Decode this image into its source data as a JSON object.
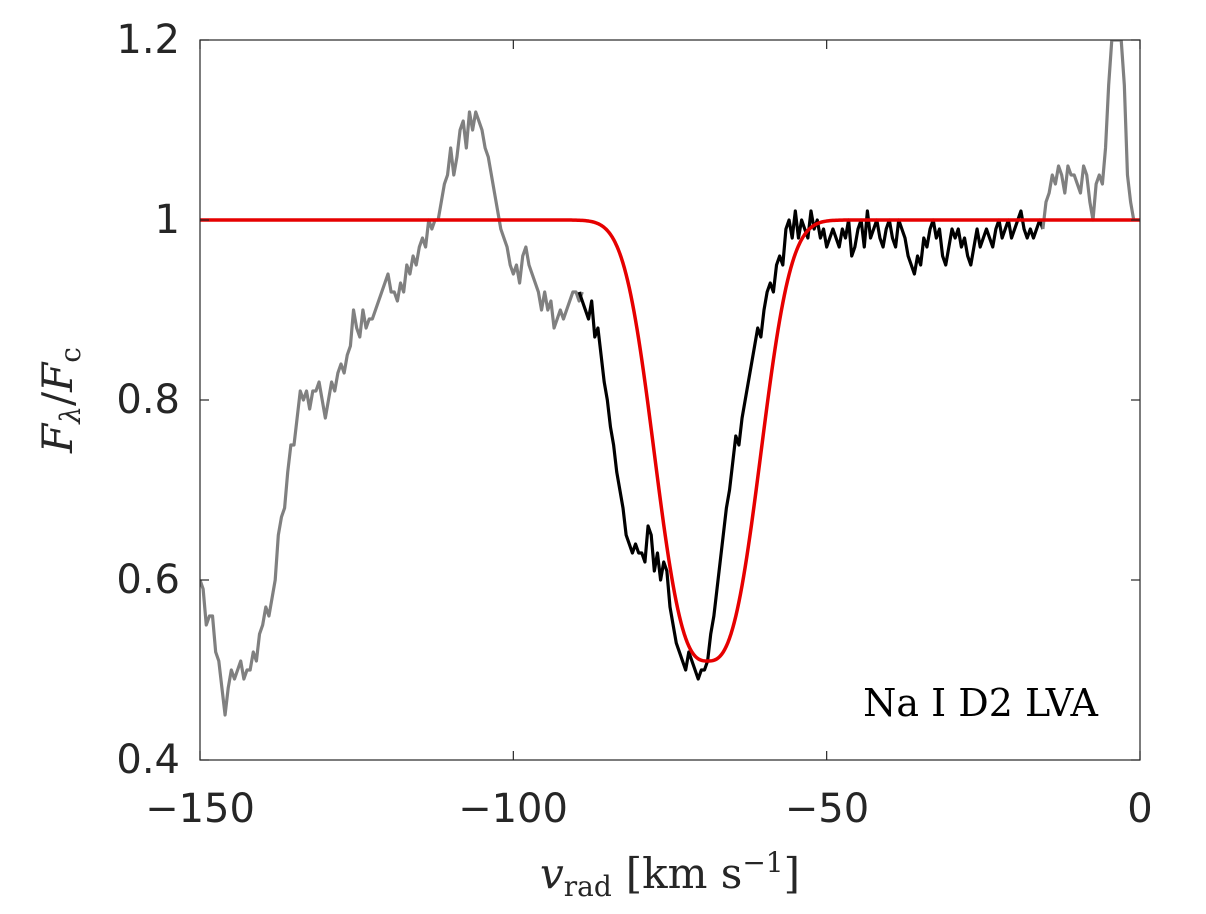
{
  "chart_data": {
    "type": "line",
    "xlim": [
      -150,
      0
    ],
    "ylim": [
      0.4,
      1.2
    ],
    "x_ticks": [
      -150,
      -100,
      -50,
      0
    ],
    "y_ticks": [
      0.4,
      0.6,
      0.8,
      1.0,
      1.2
    ],
    "x_tick_labels": [
      "−150",
      "−100",
      "−50",
      "0"
    ],
    "y_tick_labels": [
      "0.4",
      "0.6",
      "0.8",
      "1",
      "1.2"
    ],
    "xlabel": {
      "main": "v",
      "sub": "rad",
      "unit_open": "[km s",
      "unit_sup": "−1",
      "unit_close": "]"
    },
    "ylabel": {
      "f1": "F",
      "s1": "λ",
      "slash": "/",
      "f2": "F",
      "s2": "c"
    },
    "annotation": "Na I D2 LVA",
    "grid": false,
    "colors": {
      "observed_excluded": "#808080",
      "observed_fitted": "#000000",
      "model": "#e60000"
    },
    "series": [
      {
        "color_key": "observed_excluded",
        "x": [
          -150,
          -149.5,
          -149,
          -148.5,
          -148,
          -147.5,
          -147,
          -146.5,
          -146,
          -145.5,
          -145,
          -144.5,
          -144,
          -143.5,
          -143,
          -142.5,
          -142,
          -141.5,
          -141,
          -140.5,
          -140,
          -139.5,
          -139,
          -138.5,
          -138,
          -137.5,
          -137,
          -136.5,
          -136,
          -135.5,
          -135,
          -134.5,
          -134,
          -133.5,
          -133,
          -132.5,
          -132,
          -131.5,
          -131,
          -130.5,
          -130,
          -129.5,
          -129,
          -128.5,
          -128,
          -127.5,
          -127,
          -126.5,
          -126,
          -125.5,
          -125,
          -124.5,
          -124,
          -123.5,
          -123,
          -122.5,
          -122,
          -121.5,
          -121,
          -120.5,
          -120,
          -119.5,
          -119,
          -118.5,
          -118,
          -117.5,
          -117,
          -116.5,
          -116,
          -115.5,
          -115,
          -114.5,
          -114,
          -113.5,
          -113,
          -112.5,
          -112,
          -111.5,
          -111,
          -110.5,
          -110,
          -109.5,
          -109,
          -108.5,
          -108,
          -107.5,
          -107,
          -106.5,
          -106,
          -105.5,
          -105,
          -104.5,
          -104,
          -103.5,
          -103,
          -102.5,
          -102,
          -101.5,
          -101,
          -100.5,
          -100,
          -99.5,
          -99,
          -98.5,
          -98,
          -97.5,
          -97,
          -96.5,
          -96,
          -95.5,
          -95,
          -94.5,
          -94,
          -93.5,
          -93,
          -92.5,
          -92,
          -91.5,
          -91,
          -90.5,
          -90,
          -89.5,
          -89
        ],
        "y": [
          0.6,
          0.59,
          0.55,
          0.56,
          0.56,
          0.52,
          0.51,
          0.48,
          0.45,
          0.48,
          0.5,
          0.49,
          0.5,
          0.51,
          0.49,
          0.5,
          0.5,
          0.52,
          0.51,
          0.54,
          0.55,
          0.57,
          0.56,
          0.58,
          0.6,
          0.65,
          0.67,
          0.68,
          0.72,
          0.75,
          0.75,
          0.78,
          0.81,
          0.8,
          0.81,
          0.79,
          0.81,
          0.81,
          0.82,
          0.8,
          0.78,
          0.8,
          0.82,
          0.81,
          0.83,
          0.84,
          0.83,
          0.85,
          0.86,
          0.9,
          0.88,
          0.87,
          0.9,
          0.88,
          0.89,
          0.89,
          0.9,
          0.91,
          0.92,
          0.93,
          0.94,
          0.92,
          0.92,
          0.91,
          0.93,
          0.92,
          0.95,
          0.94,
          0.96,
          0.95,
          0.97,
          0.98,
          0.97,
          1.0,
          0.99,
          1.0,
          1.0,
          1.02,
          1.04,
          1.05,
          1.08,
          1.05,
          1.07,
          1.1,
          1.11,
          1.08,
          1.12,
          1.1,
          1.12,
          1.11,
          1.1,
          1.08,
          1.07,
          1.05,
          1.03,
          1.01,
          0.99,
          0.98,
          0.97,
          0.95,
          0.94,
          0.95,
          0.93,
          0.96,
          0.97,
          0.95,
          0.94,
          0.93,
          0.92,
          0.9,
          0.92,
          0.9,
          0.91,
          0.88,
          0.89,
          0.9,
          0.89,
          0.9,
          0.91,
          0.92,
          0.92,
          0.91,
          0.92
        ]
      },
      {
        "color_key": "observed_fitted",
        "x": [
          -89.5,
          -89,
          -88.5,
          -88,
          -87.5,
          -87,
          -86.5,
          -86,
          -85.5,
          -85,
          -84.5,
          -84,
          -83.5,
          -83,
          -82.5,
          -82,
          -81.5,
          -81,
          -80.5,
          -80,
          -79.5,
          -79,
          -78.5,
          -78,
          -77.5,
          -77,
          -76.5,
          -76,
          -75.5,
          -75,
          -74.5,
          -74,
          -73.5,
          -73,
          -72.5,
          -72,
          -71.5,
          -71,
          -70.5,
          -70,
          -69.5,
          -69,
          -68.5,
          -68,
          -67.5,
          -67,
          -66.5,
          -66,
          -65.5,
          -65,
          -64.5,
          -64,
          -63.5,
          -63,
          -62.5,
          -62,
          -61.5,
          -61,
          -60.5,
          -60,
          -59.5,
          -59,
          -58.5,
          -58,
          -57.5,
          -57,
          -56.5,
          -56,
          -55.5,
          -55,
          -54.5,
          -54,
          -53.5,
          -53,
          -52.5,
          -52,
          -51.5,
          -51,
          -50.5,
          -50,
          -49.5,
          -49,
          -48.5,
          -48,
          -47.5,
          -47,
          -46.5,
          -46,
          -45.5,
          -45,
          -44.5,
          -44,
          -43.5,
          -43,
          -42.5,
          -42,
          -41.5,
          -41,
          -40.5,
          -40,
          -39.5,
          -39,
          -38.5,
          -38,
          -37.5,
          -37,
          -36.5,
          -36,
          -35.5,
          -35,
          -34.5,
          -34,
          -33.5,
          -33,
          -32.5,
          -32,
          -31.5,
          -31,
          -30.5,
          -30,
          -29.5,
          -29,
          -28.5,
          -28,
          -27.5,
          -27,
          -26.5,
          -26,
          -25.5,
          -25,
          -24.5,
          -24,
          -23.5,
          -23,
          -22.5,
          -22,
          -21.5,
          -21,
          -20.5,
          -20,
          -19.5,
          -19,
          -18.5,
          -18,
          -17.5,
          -17,
          -16.5,
          -16,
          -15.5
        ],
        "y": [
          0.92,
          0.91,
          0.9,
          0.89,
          0.91,
          0.87,
          0.88,
          0.85,
          0.82,
          0.8,
          0.77,
          0.75,
          0.72,
          0.7,
          0.68,
          0.65,
          0.64,
          0.63,
          0.64,
          0.63,
          0.63,
          0.62,
          0.66,
          0.65,
          0.61,
          0.63,
          0.6,
          0.62,
          0.61,
          0.57,
          0.55,
          0.53,
          0.52,
          0.51,
          0.5,
          0.52,
          0.51,
          0.5,
          0.49,
          0.5,
          0.5,
          0.51,
          0.54,
          0.56,
          0.59,
          0.62,
          0.65,
          0.68,
          0.7,
          0.73,
          0.76,
          0.75,
          0.78,
          0.8,
          0.82,
          0.84,
          0.86,
          0.88,
          0.87,
          0.9,
          0.92,
          0.93,
          0.92,
          0.95,
          0.96,
          0.95,
          0.99,
          1.0,
          0.98,
          1.01,
          0.98,
          1.0,
          0.99,
          0.98,
          1.01,
          0.99,
          1.0,
          0.98,
          0.99,
          0.97,
          0.98,
          0.99,
          0.98,
          0.97,
          0.99,
          0.98,
          1.0,
          0.96,
          0.97,
          0.99,
          1.0,
          0.97,
          1.01,
          0.98,
          0.99,
          1.0,
          0.98,
          0.97,
          0.99,
          1.0,
          0.98,
          0.97,
          1.0,
          0.99,
          0.98,
          0.96,
          0.95,
          0.94,
          0.96,
          0.95,
          0.98,
          0.97,
          0.99,
          1.0,
          0.98,
          0.99,
          0.96,
          0.95,
          0.97,
          0.99,
          0.98,
          0.99,
          0.97,
          0.98,
          0.96,
          0.95,
          0.97,
          0.99,
          0.97,
          0.98,
          0.99,
          0.98,
          0.97,
          0.99,
          1.0,
          0.98,
          0.99,
          1.0,
          0.98,
          0.99,
          1.0,
          1.01,
          0.99,
          0.98,
          0.99,
          0.98,
          0.99,
          1.0,
          0.99
        ]
      },
      {
        "color_key": "observed_excluded",
        "x": [
          -15.5,
          -15,
          -14.5,
          -14,
          -13.5,
          -13,
          -12.5,
          -12,
          -11.5,
          -11,
          -10.5,
          -10,
          -9.5,
          -9,
          -8.5,
          -8,
          -7.5,
          -7,
          -6.5,
          -6,
          -5.5,
          -5,
          -4.5,
          -4,
          -3.5,
          -3,
          -2.5,
          -2,
          -1.5,
          -1
        ],
        "y": [
          0.99,
          1.02,
          1.03,
          1.05,
          1.04,
          1.06,
          1.05,
          1.03,
          1.06,
          1.05,
          1.05,
          1.04,
          1.03,
          1.06,
          1.05,
          1.02,
          1.0,
          1.04,
          1.05,
          1.04,
          1.08,
          1.15,
          1.2,
          1.2,
          1.2,
          1.2,
          1.15,
          1.05,
          1.02,
          1.0
        ]
      },
      {
        "color_key": "model",
        "model": {
          "continuum": 1.0,
          "center": -69.0,
          "depth": 0.49,
          "sigma": 7.8,
          "power": 2.8,
          "x_min": -150,
          "x_max": 0
        }
      }
    ]
  }
}
